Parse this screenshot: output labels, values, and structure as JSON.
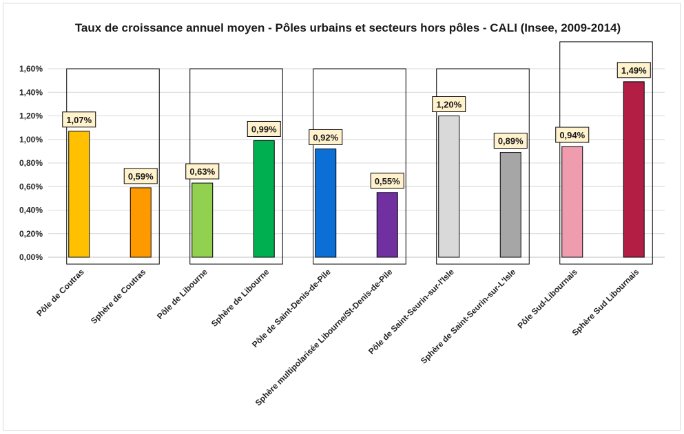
{
  "chart_data": {
    "type": "bar",
    "title": "Taux de croissance annuel moyen - Pôles urbains et secteurs hors pôles - CALI (Insee, 2009-2014)",
    "categories": [
      "Pôle de Coutras",
      "Sphère de Coutras",
      "Pôle de Libourne",
      "Sphère de Libourne",
      "Pôle de Saint-Denis-de-Pile",
      "Sphère multipolarisée Libourne/St-Denis-de-Pile",
      "Pôle de Saint-Seurin-sur-l'Isle",
      "Sphère de Saint-Seurin-sur-L'Isle",
      "Pôle Sud-Libournais",
      "Sphère Sud Libournais"
    ],
    "values": [
      1.07,
      0.59,
      0.63,
      0.99,
      0.92,
      0.55,
      1.2,
      0.89,
      0.94,
      1.49
    ],
    "value_labels": [
      "1,07%",
      "0,59%",
      "0,63%",
      "0,99%",
      "0,92%",
      "0,55%",
      "1,20%",
      "0,89%",
      "0,94%",
      "1,49%"
    ],
    "colors": [
      "#ffc000",
      "#ff9900",
      "#92d050",
      "#00b050",
      "#0b6fd6",
      "#7030a0",
      "#d9d9d9",
      "#a6a6a6",
      "#ee9cae",
      "#b31e45"
    ],
    "ylim": [
      0,
      1.6
    ],
    "yticks": [
      0,
      0.2,
      0.4,
      0.6,
      0.8,
      1.0,
      1.2,
      1.4,
      1.6
    ],
    "ytick_labels": [
      "0,00%",
      "0,20%",
      "0,40%",
      "0,60%",
      "0,80%",
      "1,00%",
      "1,20%",
      "1,40%",
      "1,60%"
    ],
    "groups": [
      [
        "Pôle de Coutras",
        "Sphère de Coutras"
      ],
      [
        "Pôle de Libourne",
        "Sphère de Libourne"
      ],
      [
        "Pôle de Saint-Denis-de-Pile",
        "Sphère multipolarisée Libourne/St-Denis-de-Pile"
      ],
      [
        "Pôle de Saint-Seurin-sur-l'Isle",
        "Sphère de Saint-Seurin-sur-L'Isle"
      ],
      [
        "Pôle Sud-Libournais",
        "Sphère Sud Libournais"
      ]
    ],
    "grid": true,
    "label_background": "#fff2cc"
  }
}
